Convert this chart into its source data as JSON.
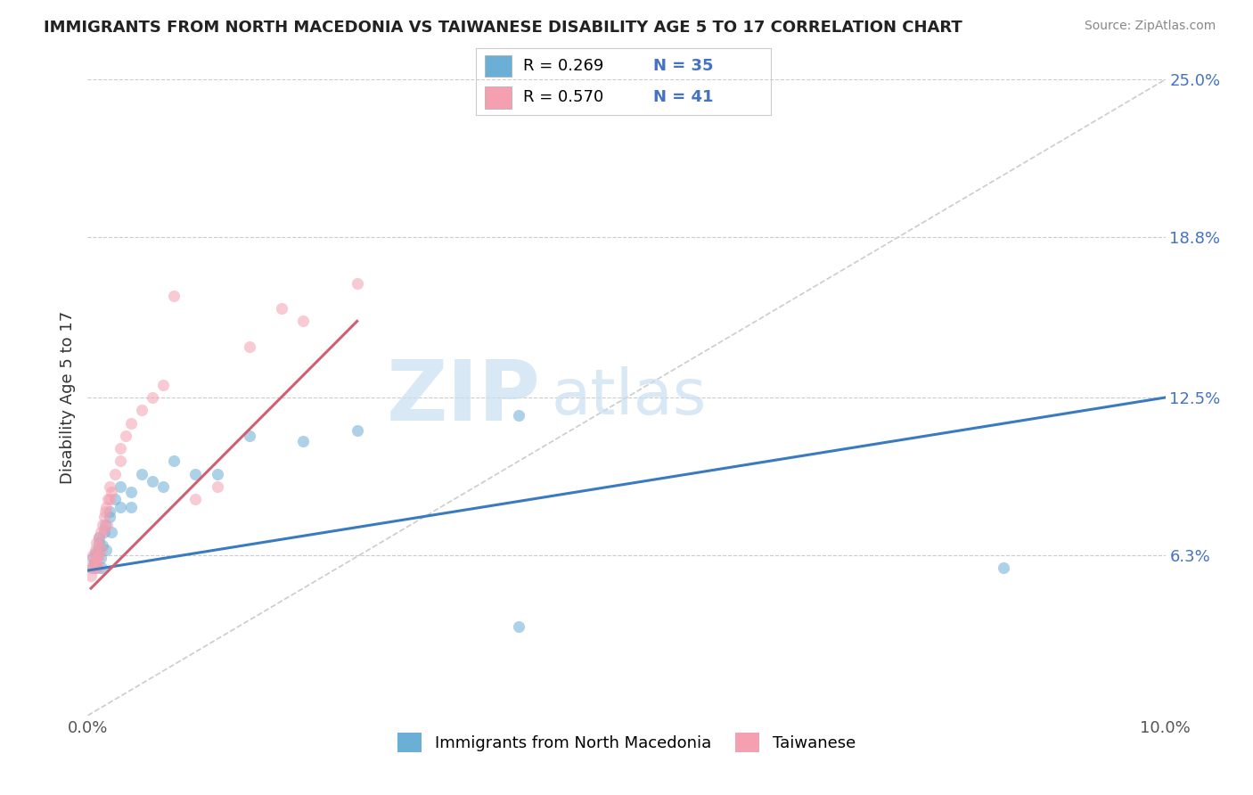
{
  "title": "IMMIGRANTS FROM NORTH MACEDONIA VS TAIWANESE DISABILITY AGE 5 TO 17 CORRELATION CHART",
  "source": "Source: ZipAtlas.com",
  "ylabel": "Disability Age 5 to 17",
  "xlim": [
    0.0,
    0.1
  ],
  "ylim": [
    0.0,
    0.25
  ],
  "ytick_labels_right": [
    "6.3%",
    "12.5%",
    "18.8%",
    "25.0%"
  ],
  "yticks_right": [
    0.063,
    0.125,
    0.188,
    0.25
  ],
  "blue_color": "#6baed6",
  "pink_color": "#f4a0b0",
  "blue_line_color": "#3a7abf",
  "pink_line_color": "#d06070",
  "legend_label_blue": "Immigrants from North Macedonia",
  "legend_label_pink": "Taiwanese",
  "blue_scatter_x": [
    0.0005,
    0.0005,
    0.0006,
    0.0007,
    0.0008,
    0.0009,
    0.001,
    0.001,
    0.001,
    0.0012,
    0.0013,
    0.0014,
    0.0015,
    0.0016,
    0.0017,
    0.002,
    0.002,
    0.0022,
    0.0025,
    0.003,
    0.003,
    0.004,
    0.004,
    0.005,
    0.006,
    0.007,
    0.008,
    0.01,
    0.012,
    0.015,
    0.02,
    0.025,
    0.04,
    0.04,
    0.085
  ],
  "blue_scatter_y": [
    0.058,
    0.062,
    0.06,
    0.064,
    0.058,
    0.063,
    0.065,
    0.068,
    0.07,
    0.062,
    0.058,
    0.067,
    0.072,
    0.075,
    0.065,
    0.08,
    0.078,
    0.072,
    0.085,
    0.09,
    0.082,
    0.088,
    0.082,
    0.095,
    0.092,
    0.09,
    0.1,
    0.095,
    0.095,
    0.11,
    0.108,
    0.112,
    0.035,
    0.118,
    0.058
  ],
  "pink_scatter_x": [
    0.0003,
    0.0004,
    0.0005,
    0.0005,
    0.0006,
    0.0007,
    0.0007,
    0.0008,
    0.0008,
    0.0009,
    0.001,
    0.001,
    0.001,
    0.001,
    0.0012,
    0.0013,
    0.0014,
    0.0015,
    0.0015,
    0.0016,
    0.0017,
    0.0018,
    0.0019,
    0.002,
    0.002,
    0.0022,
    0.0025,
    0.003,
    0.003,
    0.0035,
    0.004,
    0.005,
    0.006,
    0.007,
    0.008,
    0.01,
    0.012,
    0.015,
    0.018,
    0.02,
    0.025
  ],
  "pink_scatter_y": [
    0.055,
    0.058,
    0.06,
    0.063,
    0.058,
    0.062,
    0.065,
    0.06,
    0.068,
    0.062,
    0.058,
    0.063,
    0.067,
    0.07,
    0.072,
    0.065,
    0.075,
    0.073,
    0.078,
    0.08,
    0.082,
    0.075,
    0.085,
    0.085,
    0.09,
    0.088,
    0.095,
    0.1,
    0.105,
    0.11,
    0.115,
    0.12,
    0.125,
    0.13,
    0.165,
    0.085,
    0.09,
    0.145,
    0.16,
    0.155,
    0.17
  ],
  "blue_line_x0": 0.0,
  "blue_line_y0": 0.057,
  "blue_line_x1": 0.1,
  "blue_line_y1": 0.125,
  "pink_line_x0": 0.0003,
  "pink_line_y0": 0.05,
  "pink_line_x1": 0.025,
  "pink_line_y1": 0.155,
  "ref_line_x0": 0.0,
  "ref_line_y0": 0.0,
  "ref_line_x1": 0.1,
  "ref_line_y1": 0.25
}
